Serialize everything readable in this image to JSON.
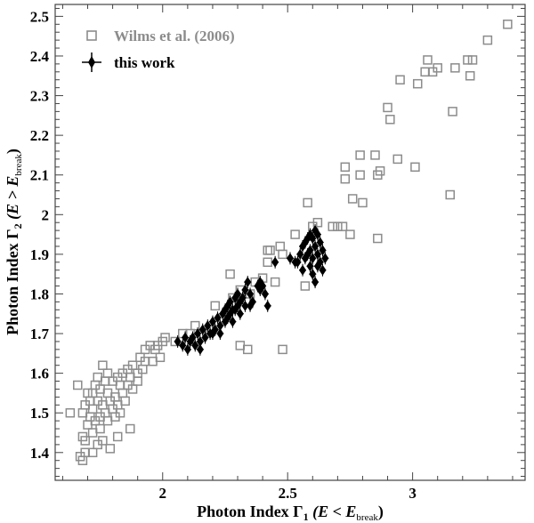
{
  "chart_data": {
    "type": "scatter",
    "title": "",
    "xlabel": {
      "prefix": "Photon Index Γ",
      "sub": "1",
      "mid": " (E < E",
      "sub2": "break",
      "suffix": ")"
    },
    "ylabel": {
      "prefix": "Photon Index Γ",
      "sub": "2",
      "mid": " (E > E",
      "sub2": "break",
      "suffix": ")"
    },
    "xlim": [
      1.57,
      3.45
    ],
    "ylim": [
      1.33,
      2.53
    ],
    "xticks": [
      2,
      2.5,
      3
    ],
    "xtick_labels": [
      "2",
      "2.5",
      "3"
    ],
    "yticks": [
      1.4,
      1.5,
      1.6,
      1.7,
      1.8,
      1.9,
      2,
      2.1,
      2.2,
      2.3,
      2.4,
      2.5
    ],
    "ytick_labels": [
      "1.4",
      "1.5",
      "1.6",
      "1.7",
      "1.8",
      "1.9",
      "2",
      "2.1",
      "2.2",
      "2.3",
      "2.4",
      "2.5"
    ],
    "grid": false,
    "legend_position": "top-left",
    "colors": {
      "wilms": "#8c8c8c",
      "this_work": "#000000"
    },
    "series": [
      {
        "name": "Wilms et al. (2006)",
        "marker": "open-square",
        "points": [
          [
            3.38,
            2.48
          ],
          [
            3.3,
            2.44
          ],
          [
            3.24,
            2.39
          ],
          [
            3.23,
            2.35
          ],
          [
            3.22,
            2.39
          ],
          [
            3.17,
            2.37
          ],
          [
            3.1,
            2.37
          ],
          [
            3.08,
            2.36
          ],
          [
            3.06,
            2.39
          ],
          [
            3.05,
            2.36
          ],
          [
            3.02,
            2.33
          ],
          [
            2.95,
            2.34
          ],
          [
            2.9,
            2.27
          ],
          [
            2.91,
            2.24
          ],
          [
            3.16,
            2.26
          ],
          [
            3.01,
            2.12
          ],
          [
            2.94,
            2.14
          ],
          [
            3.15,
            2.05
          ],
          [
            2.87,
            2.11
          ],
          [
            2.86,
            2.1
          ],
          [
            2.85,
            2.15
          ],
          [
            2.79,
            2.15
          ],
          [
            2.79,
            2.1
          ],
          [
            2.73,
            2.12
          ],
          [
            2.73,
            2.09
          ],
          [
            2.76,
            2.04
          ],
          [
            2.8,
            2.03
          ],
          [
            2.75,
            1.95
          ],
          [
            2.86,
            1.94
          ],
          [
            2.62,
            1.98
          ],
          [
            2.68,
            1.97
          ],
          [
            2.7,
            1.97
          ],
          [
            2.72,
            1.97
          ],
          [
            2.58,
            2.03
          ],
          [
            2.6,
            1.97
          ],
          [
            2.57,
            1.82
          ],
          [
            2.53,
            1.95
          ],
          [
            2.47,
            1.92
          ],
          [
            2.48,
            1.9
          ],
          [
            2.43,
            1.91
          ],
          [
            2.42,
            1.91
          ],
          [
            2.42,
            1.88
          ],
          [
            2.45,
            1.83
          ],
          [
            2.4,
            1.84
          ],
          [
            2.37,
            1.83
          ],
          [
            2.31,
            1.81
          ],
          [
            2.35,
            1.8
          ],
          [
            2.27,
            1.85
          ],
          [
            2.28,
            1.79
          ],
          [
            2.34,
            1.66
          ],
          [
            2.31,
            1.67
          ],
          [
            2.48,
            1.66
          ],
          [
            2.21,
            1.77
          ],
          [
            2.19,
            1.71
          ],
          [
            2.13,
            1.72
          ],
          [
            2.11,
            1.7
          ],
          [
            2.08,
            1.7
          ],
          [
            2.05,
            1.68
          ],
          [
            2.0,
            1.68
          ],
          [
            2.01,
            1.69
          ],
          [
            1.98,
            1.67
          ],
          [
            1.97,
            1.66
          ],
          [
            1.95,
            1.67
          ],
          [
            1.93,
            1.66
          ],
          [
            1.96,
            1.63
          ],
          [
            1.91,
            1.64
          ],
          [
            1.92,
            1.61
          ],
          [
            1.9,
            1.6
          ],
          [
            1.88,
            1.62
          ],
          [
            1.86,
            1.61
          ],
          [
            1.87,
            1.59
          ],
          [
            1.84,
            1.6
          ],
          [
            1.82,
            1.59
          ],
          [
            1.83,
            1.57
          ],
          [
            1.8,
            1.58
          ],
          [
            1.78,
            1.6
          ],
          [
            1.76,
            1.62
          ],
          [
            1.77,
            1.58
          ],
          [
            1.75,
            1.56
          ],
          [
            1.74,
            1.59
          ],
          [
            1.73,
            1.57
          ],
          [
            1.72,
            1.55
          ],
          [
            1.71,
            1.53
          ],
          [
            1.7,
            1.55
          ],
          [
            1.69,
            1.52
          ],
          [
            1.68,
            1.5
          ],
          [
            1.72,
            1.51
          ],
          [
            1.74,
            1.53
          ],
          [
            1.76,
            1.52
          ],
          [
            1.78,
            1.55
          ],
          [
            1.79,
            1.53
          ],
          [
            1.81,
            1.54
          ],
          [
            1.8,
            1.51
          ],
          [
            1.82,
            1.52
          ],
          [
            1.84,
            1.55
          ],
          [
            1.85,
            1.53
          ],
          [
            1.83,
            1.5
          ],
          [
            1.77,
            1.5
          ],
          [
            1.75,
            1.49
          ],
          [
            1.73,
            1.48
          ],
          [
            1.71,
            1.49
          ],
          [
            1.7,
            1.47
          ],
          [
            1.68,
            1.44
          ],
          [
            1.69,
            1.43
          ],
          [
            1.72,
            1.45
          ],
          [
            1.75,
            1.46
          ],
          [
            1.78,
            1.48
          ],
          [
            1.81,
            1.49
          ],
          [
            1.66,
            1.57
          ],
          [
            1.63,
            1.5
          ],
          [
            1.67,
            1.39
          ],
          [
            1.69,
            1.4
          ],
          [
            1.72,
            1.4
          ],
          [
            1.74,
            1.42
          ],
          [
            1.76,
            1.43
          ],
          [
            1.79,
            1.41
          ],
          [
            1.82,
            1.44
          ],
          [
            1.87,
            1.46
          ],
          [
            1.68,
            1.38
          ],
          [
            1.88,
            1.56
          ],
          [
            1.9,
            1.58
          ],
          [
            1.86,
            1.57
          ],
          [
            1.93,
            1.63
          ],
          [
            1.99,
            1.64
          ]
        ]
      },
      {
        "name": "this work",
        "marker": "filled-diamond-errorbar",
        "points": [
          [
            2.06,
            1.68
          ],
          [
            2.08,
            1.67
          ],
          [
            2.1,
            1.66
          ],
          [
            2.11,
            1.68
          ],
          [
            2.12,
            1.69
          ],
          [
            2.13,
            1.67
          ],
          [
            2.14,
            1.7
          ],
          [
            2.15,
            1.68
          ],
          [
            2.16,
            1.71
          ],
          [
            2.17,
            1.69
          ],
          [
            2.18,
            1.72
          ],
          [
            2.19,
            1.7
          ],
          [
            2.2,
            1.73
          ],
          [
            2.21,
            1.71
          ],
          [
            2.22,
            1.74
          ],
          [
            2.23,
            1.72
          ],
          [
            2.24,
            1.75
          ],
          [
            2.25,
            1.73
          ],
          [
            2.25,
            1.76
          ],
          [
            2.26,
            1.74
          ],
          [
            2.26,
            1.77
          ],
          [
            2.27,
            1.75
          ],
          [
            2.27,
            1.78
          ],
          [
            2.28,
            1.76
          ],
          [
            2.28,
            1.73
          ],
          [
            2.29,
            1.79
          ],
          [
            2.29,
            1.76
          ],
          [
            2.3,
            1.77
          ],
          [
            2.3,
            1.8
          ],
          [
            2.31,
            1.78
          ],
          [
            2.31,
            1.75
          ],
          [
            2.32,
            1.79
          ],
          [
            2.33,
            1.81
          ],
          [
            2.33,
            1.77
          ],
          [
            2.34,
            1.83
          ],
          [
            2.35,
            1.8
          ],
          [
            2.35,
            1.77
          ],
          [
            2.36,
            1.78
          ],
          [
            2.38,
            1.82
          ],
          [
            2.39,
            1.81
          ],
          [
            2.4,
            1.82
          ],
          [
            2.41,
            1.8
          ],
          [
            2.42,
            1.77
          ],
          [
            2.39,
            1.83
          ],
          [
            2.2,
            1.7
          ],
          [
            2.15,
            1.66
          ],
          [
            2.09,
            1.69
          ],
          [
            2.23,
            1.7
          ],
          [
            2.45,
            1.88
          ],
          [
            2.54,
            1.88
          ],
          [
            2.55,
            1.9
          ],
          [
            2.56,
            1.92
          ],
          [
            2.57,
            1.93
          ],
          [
            2.57,
            1.89
          ],
          [
            2.58,
            1.9
          ],
          [
            2.59,
            1.87
          ],
          [
            2.59,
            1.91
          ],
          [
            2.6,
            1.94
          ],
          [
            2.6,
            1.89
          ],
          [
            2.61,
            1.96
          ],
          [
            2.61,
            1.92
          ],
          [
            2.62,
            1.95
          ],
          [
            2.62,
            1.9
          ],
          [
            2.62,
            1.87
          ],
          [
            2.63,
            1.93
          ],
          [
            2.63,
            1.88
          ],
          [
            2.64,
            1.91
          ],
          [
            2.64,
            1.86
          ],
          [
            2.65,
            1.89
          ],
          [
            2.6,
            1.85
          ],
          [
            2.58,
            1.94
          ],
          [
            2.53,
            1.88
          ],
          [
            2.51,
            1.89
          ],
          [
            2.56,
            1.86
          ],
          [
            2.59,
            1.95
          ],
          [
            2.61,
            1.83
          ]
        ]
      }
    ]
  }
}
